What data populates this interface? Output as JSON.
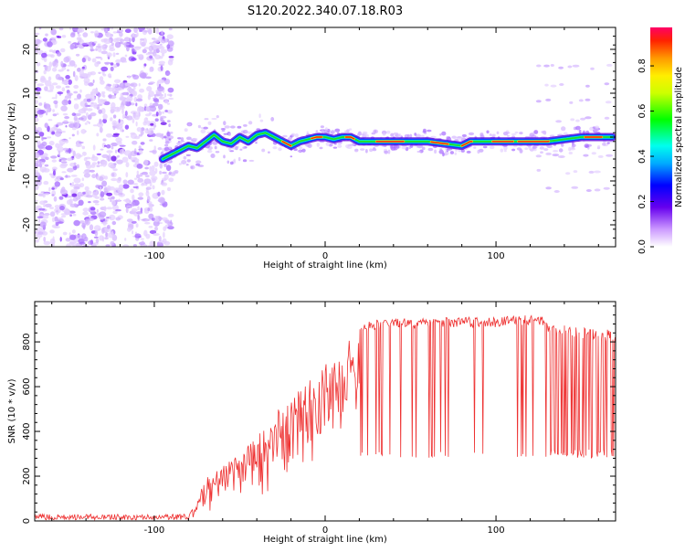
{
  "title": "S120.2022.340.07.18.R03",
  "chart_data": [
    {
      "type": "heatmap",
      "xlabel": "Height of straight line (km)",
      "ylabel": "Frequency (Hz)",
      "xlim": [
        -170,
        170
      ],
      "ylim": [
        -25,
        25
      ],
      "xticks": [
        -100,
        0,
        100
      ],
      "yticks": [
        -20,
        -10,
        0,
        10,
        20
      ],
      "ridge": {
        "x": [
          -95,
          -90,
          -85,
          -80,
          -75,
          -70,
          -65,
          -60,
          -55,
          -50,
          -45,
          -40,
          -35,
          -30,
          -25,
          -20,
          -15,
          -10,
          -5,
          0,
          5,
          10,
          15,
          20,
          30,
          40,
          50,
          60,
          70,
          80,
          85,
          90,
          100,
          110,
          120,
          130,
          140,
          150,
          160,
          168
        ],
        "y": [
          -5,
          -4,
          -3,
          -2,
          -2.5,
          -1,
          0.5,
          -1,
          -1.5,
          0,
          -1,
          0.5,
          1,
          0,
          -1,
          -2,
          -1,
          -0.5,
          0,
          0,
          -0.5,
          0,
          0,
          -1,
          -1,
          -1,
          -1,
          -1,
          -1.5,
          -2,
          -1,
          -1,
          -1,
          -1,
          -1,
          -1,
          -0.5,
          0,
          0,
          0
        ]
      },
      "colorbar": {
        "label": "Normalized spectral amplitude",
        "ticks": [
          "0.0",
          "0.2",
          "0.4",
          "0.6",
          "0.8"
        ],
        "range": [
          0,
          0.97
        ]
      }
    },
    {
      "type": "line",
      "xlabel": "Height of straight line (km)",
      "ylabel": "SNR (10 * v/v)",
      "xlim": [
        -170,
        170
      ],
      "ylim": [
        0,
        980
      ],
      "xticks": [
        -100,
        0,
        100
      ],
      "yticks": [
        0,
        200,
        400,
        600,
        800
      ],
      "color": "#ee3030",
      "envelope": {
        "x": [
          -170,
          -80,
          -75,
          -70,
          -60,
          -50,
          -40,
          -30,
          -20,
          -10,
          0,
          10,
          15,
          20,
          30,
          40,
          60,
          80,
          100,
          110,
          120,
          125,
          130,
          140,
          150,
          160,
          170
        ],
        "low": [
          5,
          5,
          15,
          40,
          60,
          80,
          100,
          130,
          180,
          240,
          300,
          330,
          300,
          290,
          280,
          280,
          280,
          280,
          280,
          280,
          280,
          280,
          280,
          280,
          280,
          280,
          280
        ],
        "high": [
          30,
          30,
          80,
          200,
          250,
          300,
          380,
          480,
          560,
          620,
          700,
          780,
          850,
          880,
          900,
          905,
          905,
          910,
          910,
          920,
          920,
          920,
          900,
          880,
          870,
          860,
          850
        ]
      }
    }
  ]
}
